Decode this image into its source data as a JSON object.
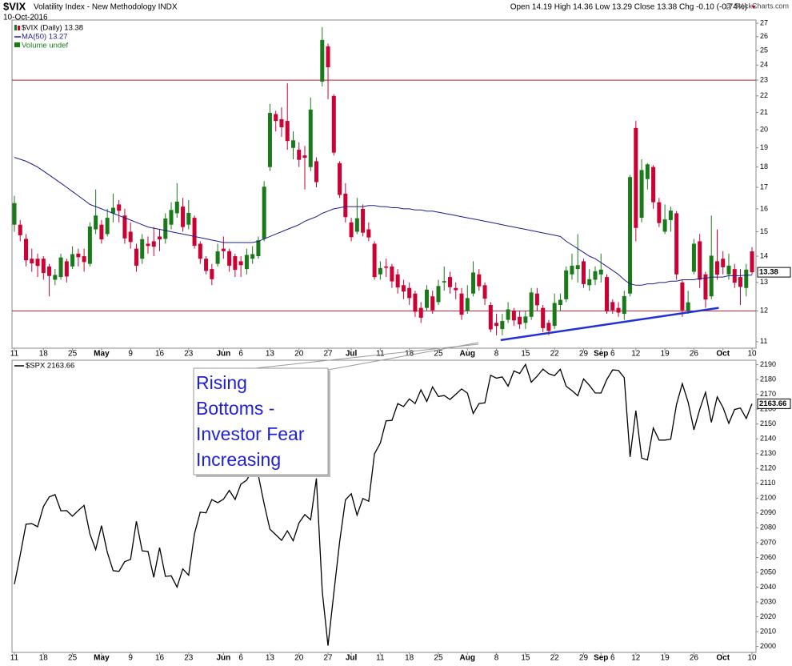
{
  "header": {
    "title": "$VIX",
    "subtitle": "Volatility Index - New Methodology INDX",
    "date": "10-Oct-2016",
    "quote": "Open 14.19 High 14.36 Low 13.29 Close 13.38 Chg -0.10 (-0.74%)",
    "source": "@ StockCharts.com"
  },
  "chart_data": [
    {
      "type": "candlestick",
      "name": "$VIX (Daily) 13.38",
      "volume_label": "Volume undef",
      "last_value_label": "13.38",
      "log": true,
      "up_color": "#1a7a1a",
      "down_color": "#cc0033",
      "categories": [
        "11",
        null,
        null,
        null,
        null,
        "18",
        null,
        null,
        null,
        null,
        "25",
        null,
        null,
        null,
        null,
        "May",
        null,
        null,
        null,
        null,
        "9",
        null,
        null,
        null,
        null,
        "16",
        null,
        null,
        null,
        null,
        "23",
        null,
        null,
        null,
        null,
        null,
        "Jun",
        null,
        null,
        "6",
        null,
        null,
        null,
        null,
        "13",
        null,
        null,
        null,
        null,
        "20",
        null,
        null,
        null,
        null,
        "27",
        null,
        null,
        null,
        "Jul",
        null,
        null,
        null,
        null,
        "11",
        null,
        null,
        null,
        null,
        "18",
        null,
        null,
        null,
        null,
        "25",
        null,
        null,
        null,
        null,
        "Aug",
        null,
        null,
        null,
        null,
        "8",
        null,
        null,
        null,
        null,
        "15",
        null,
        null,
        null,
        null,
        "22",
        null,
        null,
        null,
        null,
        "29",
        null,
        null,
        "Sep",
        null,
        "6",
        null,
        null,
        null,
        "12",
        null,
        null,
        null,
        null,
        "19",
        null,
        null,
        null,
        null,
        "26",
        null,
        null,
        null,
        null,
        "Oct",
        null,
        null,
        null,
        null,
        "10"
      ],
      "open": [
        15.3,
        15.3,
        14.7,
        13.9,
        13.9,
        13.9,
        13.6,
        13.1,
        13.2,
        13.8,
        13.6,
        14.1,
        14.0,
        13.7,
        15.1,
        15.3,
        14.9,
        15.8,
        16.2,
        15.7,
        15.0,
        14.3,
        13.9,
        14.5,
        14.6,
        14.8,
        14.7,
        15.3,
        15.8,
        16.1,
        15.3,
        15.6,
        14.5,
        13.9,
        13.5,
        13.7,
        14.3,
        14.2,
        14.0,
        13.8,
        13.5,
        13.9,
        14.0,
        14.7,
        18.0,
        20.9,
        20.6,
        20.5,
        19.0,
        18.9,
        18.6,
        18.0,
        18.3,
        22.9,
        25.3,
        22.0,
        18.2,
        16.7,
        15.4,
        15.0,
        16.0,
        15.1,
        14.5,
        13.3,
        13.6,
        13.6,
        13.3,
        12.9,
        12.8,
        12.6,
        12.1,
        12.1,
        12.5,
        12.3,
        13.0,
        13.2,
        12.8,
        12.6,
        12.0,
        12.6,
        13.3,
        12.9,
        12.2,
        11.6,
        11.4,
        11.7,
        12.0,
        11.8,
        11.6,
        11.8,
        12.6,
        12.1,
        11.6,
        11.5,
        12.2,
        12.4,
        13.3,
        13.5,
        13.8,
        12.9,
        13.1,
        13.3,
        13.2,
        12.3,
        12.1,
        11.9,
        12.6,
        20.1,
        15.6,
        17.4,
        18.0,
        16.3,
        15.0,
        15.5,
        15.8,
        13.0,
        12.0,
        13.4,
        14.6,
        13.3,
        12.5,
        13.8,
        13.9,
        13.3,
        13.5,
        13.2,
        12.8,
        14.19
      ],
      "high": [
        16.6,
        15.5,
        14.9,
        14.3,
        14.1,
        14.0,
        13.7,
        13.5,
        14.1,
        13.9,
        14.4,
        14.3,
        14.3,
        15.4,
        16.9,
        15.5,
        16.0,
        16.7,
        16.4,
        16.0,
        15.4,
        14.5,
        14.9,
        14.8,
        15.2,
        15.1,
        15.8,
        16.3,
        17.2,
        16.5,
        16.4,
        15.7,
        14.6,
        14.0,
        13.7,
        14.5,
        14.8,
        14.3,
        14.1,
        14.0,
        14.3,
        14.4,
        14.8,
        17.3,
        21.5,
        21.1,
        21.3,
        22.8,
        19.9,
        19.3,
        19.1,
        21.9,
        18.5,
        26.7,
        25.5,
        22.1,
        18.3,
        17.2,
        15.6,
        16.5,
        16.2,
        15.4,
        14.6,
        13.8,
        13.9,
        13.7,
        13.5,
        13.1,
        13.0,
        12.7,
        12.3,
        12.9,
        12.7,
        13.1,
        13.6,
        13.4,
        13.0,
        12.8,
        12.9,
        13.8,
        13.5,
        13.0,
        12.3,
        11.9,
        11.9,
        12.3,
        12.1,
        12.0,
        12.0,
        12.8,
        12.8,
        12.2,
        11.7,
        12.6,
        12.6,
        13.6,
        14.1,
        14.9,
        13.9,
        13.5,
        13.6,
        14.1,
        13.3,
        12.4,
        12.3,
        12.7,
        17.6,
        20.5,
        18.4,
        18.2,
        18.1,
        16.5,
        16.2,
        16.1,
        15.9,
        13.1,
        12.7,
        14.7,
        14.9,
        13.4,
        15.7,
        15.1,
        14.2,
        14.1,
        13.7,
        13.5,
        13.7,
        14.36
      ],
      "low": [
        15.0,
        14.6,
        13.6,
        13.4,
        13.2,
        13.1,
        12.5,
        12.9,
        13.1,
        13.0,
        13.5,
        13.6,
        13.4,
        13.6,
        14.9,
        14.5,
        14.8,
        15.4,
        15.4,
        14.5,
        14.3,
        13.4,
        13.7,
        14.1,
        14.0,
        14.2,
        14.5,
        15.1,
        15.6,
        15.0,
        15.1,
        14.3,
        13.7,
        13.3,
        12.9,
        13.6,
        13.9,
        13.4,
        13.2,
        13.2,
        13.3,
        13.7,
        13.9,
        14.6,
        17.8,
        19.9,
        19.6,
        18.9,
        18.4,
        18.0,
        16.9,
        17.8,
        17.0,
        22.6,
        21.8,
        18.6,
        16.5,
        15.4,
        14.6,
        14.9,
        14.8,
        14.6,
        13.1,
        13.1,
        13.2,
        12.8,
        12.6,
        12.4,
        12.2,
        11.8,
        11.6,
        12.0,
        11.9,
        12.2,
        12.7,
        12.6,
        12.4,
        11.7,
        11.9,
        12.5,
        12.7,
        12.2,
        11.3,
        11.2,
        11.2,
        11.6,
        11.5,
        11.4,
        11.4,
        11.7,
        12.0,
        11.3,
        11.2,
        11.4,
        12.0,
        12.3,
        13.1,
        13.0,
        12.8,
        12.7,
        12.9,
        13.0,
        11.9,
        11.9,
        11.8,
        11.7,
        12.5,
        14.6,
        15.4,
        16.9,
        16.0,
        15.2,
        14.9,
        15.0,
        13.1,
        11.8,
        11.9,
        13.3,
        12.8,
        12.1,
        12.4,
        13.1,
        13.3,
        13.1,
        12.8,
        12.2,
        12.5,
        13.29
      ],
      "close": [
        16.26,
        14.85,
        13.84,
        13.72,
        13.62,
        13.35,
        13.24,
        13.28,
        13.95,
        13.22,
        14.08,
        13.96,
        13.77,
        15.22,
        15.7,
        14.68,
        15.6,
        16.05,
        15.91,
        14.72,
        14.57,
        13.63,
        14.69,
        14.41,
        14.38,
        14.68,
        15.57,
        15.95,
        16.33,
        15.2,
        15.82,
        14.42,
        13.9,
        13.43,
        13.12,
        14.19,
        14.2,
        13.63,
        13.47,
        13.65,
        14.05,
        14.08,
        14.64,
        17.03,
        20.97,
        20.5,
        20.14,
        19.37,
        19.41,
        18.37,
        18.48,
        21.17,
        17.25,
        25.76,
        23.85,
        18.75,
        16.64,
        15.63,
        14.77,
        15.58,
        14.96,
        14.76,
        13.2,
        13.54,
        13.55,
        13.04,
        12.82,
        12.67,
        12.44,
        11.97,
        11.77,
        12.74,
        12.02,
        12.87,
        13.05,
        12.83,
        12.72,
        11.87,
        12.44,
        13.37,
        12.86,
        12.42,
        11.39,
        11.5,
        11.66,
        12.05,
        11.68,
        11.55,
        11.81,
        12.64,
        12.19,
        11.43,
        11.34,
        12.27,
        12.38,
        13.45,
        13.63,
        13.65,
        12.94,
        13.12,
        13.42,
        13.48,
        11.98,
        12.02,
        11.94,
        12.51,
        17.5,
        15.16,
        17.85,
        18.14,
        16.3,
        15.37,
        15.53,
        15.92,
        13.3,
        12.02,
        12.29,
        14.5,
        13.1,
        12.39,
        14.02,
        13.29,
        13.57,
        13.63,
        12.99,
        12.84,
        13.48,
        13.38
      ],
      "ma": {
        "name": "MA(50) 13.27",
        "color": "#1c1c8c",
        "values": [
          18.5,
          18.4,
          18.3,
          18.15,
          18.0,
          17.8,
          17.6,
          17.4,
          17.2,
          17.0,
          16.8,
          16.6,
          16.4,
          16.2,
          16.1,
          16.0,
          15.9,
          15.8,
          15.7,
          15.6,
          15.5,
          15.4,
          15.3,
          15.2,
          15.15,
          15.1,
          15.05,
          15.0,
          14.95,
          14.9,
          14.85,
          14.8,
          14.75,
          14.7,
          14.65,
          14.6,
          14.55,
          14.55,
          14.55,
          14.55,
          14.55,
          14.55,
          14.6,
          14.7,
          14.8,
          14.9,
          15.0,
          15.1,
          15.2,
          15.3,
          15.45,
          15.55,
          15.65,
          15.8,
          15.9,
          16.0,
          16.05,
          16.1,
          16.1,
          16.1,
          16.1,
          16.15,
          16.15,
          16.1,
          16.1,
          16.05,
          16.05,
          16.0,
          16.0,
          15.95,
          15.95,
          15.9,
          15.9,
          15.85,
          15.8,
          15.75,
          15.7,
          15.65,
          15.6,
          15.55,
          15.5,
          15.45,
          15.4,
          15.35,
          15.3,
          15.25,
          15.2,
          15.15,
          15.1,
          15.05,
          15.0,
          14.95,
          14.9,
          14.85,
          14.8,
          14.6,
          14.45,
          14.3,
          14.15,
          14.0,
          13.9,
          13.75,
          13.6,
          13.45,
          13.3,
          13.1,
          12.95,
          12.9,
          12.9,
          12.95,
          12.95,
          13.0,
          13.0,
          13.05,
          13.05,
          13.1,
          13.1,
          13.1,
          13.15,
          13.15,
          13.2,
          13.2,
          13.2,
          13.25,
          13.25,
          13.25,
          13.27,
          13.27
        ]
      },
      "hlines": {
        "values": [
          23,
          12
        ],
        "color": "#b0203a"
      },
      "trendline": {
        "values": [
          11.05,
          12.1
        ],
        "color": "#2030d8"
      },
      "ylim": [
        10.8,
        27.25
      ],
      "yticks": [
        11,
        12,
        13,
        14,
        15,
        16,
        17,
        18,
        19,
        20,
        21,
        22,
        23,
        24,
        25,
        26,
        27
      ]
    },
    {
      "type": "line",
      "categories": [
        "11",
        null,
        null,
        null,
        null,
        "18",
        null,
        null,
        null,
        null,
        "25",
        null,
        null,
        null,
        null,
        "May",
        null,
        null,
        null,
        null,
        "9",
        null,
        null,
        null,
        null,
        "16",
        null,
        null,
        null,
        null,
        "23",
        null,
        null,
        null,
        null,
        null,
        "Jun",
        null,
        null,
        "6",
        null,
        null,
        null,
        null,
        "13",
        null,
        null,
        null,
        null,
        "20",
        null,
        null,
        null,
        null,
        "27",
        null,
        null,
        null,
        "Jul",
        null,
        null,
        null,
        null,
        "11",
        null,
        null,
        null,
        null,
        "18",
        null,
        null,
        null,
        null,
        "25",
        null,
        null,
        null,
        null,
        "Aug",
        null,
        null,
        null,
        null,
        "8",
        null,
        null,
        null,
        null,
        "15",
        null,
        null,
        null,
        null,
        "22",
        null,
        null,
        null,
        null,
        "29",
        null,
        null,
        "Sep",
        null,
        "6",
        null,
        null,
        null,
        "12",
        null,
        null,
        null,
        null,
        "19",
        null,
        null,
        null,
        null,
        "26",
        null,
        null,
        null,
        null,
        "Oct",
        null,
        null,
        null,
        null,
        "10"
      ],
      "series": [
        {
          "name": "$SPX 2163.66",
          "color": "#000000",
          "values": [
            2041.99,
            2061.72,
            2082.42,
            2082.78,
            2080.73,
            2094.34,
            2100.8,
            2102.4,
            2091.48,
            2091.58,
            2087.79,
            2091.7,
            2095.15,
            2075.81,
            2065.3,
            2081.43,
            2063.37,
            2051.12,
            2050.63,
            2057.14,
            2058.69,
            2084.39,
            2064.46,
            2064.11,
            2046.61,
            2066.66,
            2047.21,
            2047.63,
            2040.04,
            2052.32,
            2048.04,
            2076.06,
            2090.54,
            2090.1,
            2099.06,
            2096.95,
            2099.33,
            2105.26,
            2099.13,
            2109.41,
            2112.13,
            2119.12,
            2115.48,
            2096.07,
            2079.06,
            2075.32,
            2071.5,
            2077.99,
            2071.22,
            2083.25,
            2088.9,
            2085.45,
            2113.32,
            2037.41,
            2000.54,
            2036.09,
            2070.77,
            2098.86,
            2102.95,
            2088.55,
            2099.73,
            2097.9,
            2129.9,
            2137.16,
            2152.14,
            2152.43,
            2163.75,
            2161.74,
            2166.89,
            2163.78,
            2173.02,
            2165.17,
            2175.03,
            2168.48,
            2169.18,
            2166.58,
            2170.06,
            2173.6,
            2170.84,
            2157.03,
            2163.79,
            2164.25,
            2182.87,
            2180.89,
            2181.74,
            2175.49,
            2185.79,
            2184.05,
            2190.15,
            2178.15,
            2182.22,
            2187.02,
            2183.87,
            2182.64,
            2186.9,
            2175.44,
            2172.47,
            2169.04,
            2180.38,
            2176.12,
            2170.95,
            2170.86,
            2179.98,
            2186.48,
            2186.16,
            2181.3,
            2127.81,
            2159.04,
            2127.02,
            2125.77,
            2147.26,
            2139.16,
            2139.12,
            2139.76,
            2163.12,
            2177.18,
            2164.69,
            2146.1,
            2159.93,
            2171.37,
            2151.13,
            2168.27,
            2161.2,
            2150.49,
            2159.73,
            2160.77,
            2153.74,
            2163.66
          ]
        }
      ],
      "last_value_label": "2163.66",
      "ylim": [
        1996,
        2193
      ],
      "yticks": [
        2000,
        2010,
        2020,
        2030,
        2040,
        2050,
        2060,
        2070,
        2080,
        2090,
        2100,
        2110,
        2120,
        2130,
        2140,
        2150,
        2160,
        2170,
        2180,
        2190
      ]
    }
  ],
  "annotation": {
    "lines": [
      "Rising",
      "Bottoms -",
      "Investor Fear",
      "Increasing"
    ]
  }
}
